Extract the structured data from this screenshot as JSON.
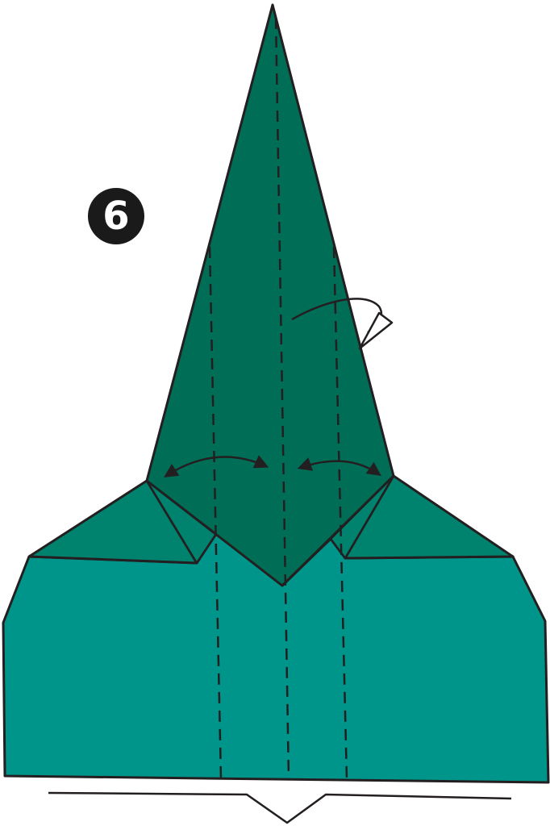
{
  "diagram": {
    "step_number": "6",
    "colors": {
      "body": "#00958A",
      "flap": "#00836E",
      "spike": "#006E57",
      "ink": "#231F20",
      "background": "#FFFFFF"
    },
    "icons": [
      "step-number-badge",
      "fold-arrow",
      "turn-over-arrow",
      "valley-fold-line",
      "pleat-symbol"
    ]
  }
}
